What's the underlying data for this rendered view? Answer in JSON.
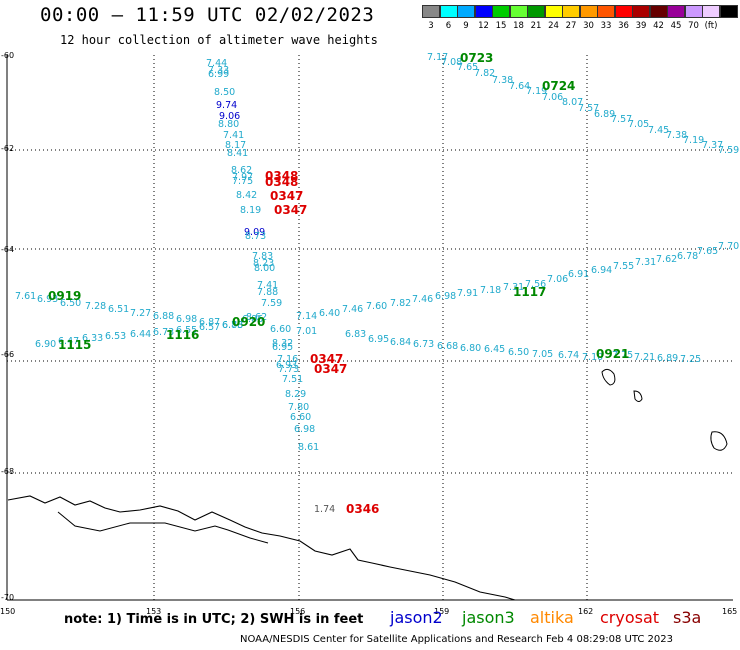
{
  "title": "00:00 — 11:59 UTC 02/02/2023",
  "subtitle": "12 hour collection of altimeter wave heights",
  "legend": {
    "colors": [
      "#888888",
      "#00ffff",
      "#00aaff",
      "#0000ff",
      "#00cc00",
      "#66ff33",
      "#009900",
      "#ffff00",
      "#ffcc00",
      "#ff9900",
      "#ff5500",
      "#ff0000",
      "#aa0000",
      "#660000",
      "#990099",
      "#cc99ff",
      "#eeccff",
      "#000000"
    ],
    "labels": [
      "3",
      "6",
      "9",
      "12",
      "15",
      "18",
      "21",
      "24",
      "27",
      "30",
      "33",
      "36",
      "39",
      "42",
      "45",
      "70",
      "(ft)"
    ]
  },
  "axes": {
    "lat_labels": [
      "-60",
      "-62",
      "-64",
      "-66",
      "-68",
      "-70"
    ],
    "lon_labels": [
      "150",
      "153",
      "156",
      "159",
      "162",
      "165"
    ]
  },
  "satellite_colors": {
    "jason2": "#0000cc",
    "jason3": "#008800",
    "altika": "#ff8800",
    "cryosat": "#dd0000",
    "s3a": "#880000",
    "wave": "#22aacc"
  },
  "pass_times": [
    {
      "label": "0723",
      "sat": "jason3"
    },
    {
      "label": "0724",
      "sat": "jason3"
    },
    {
      "label": "0348",
      "sat": "cryosat"
    },
    {
      "label": "0348",
      "sat": "cryosat"
    },
    {
      "label": "0347",
      "sat": "cryosat"
    },
    {
      "label": "0347",
      "sat": "cryosat"
    },
    {
      "label": "0919",
      "sat": "jason3"
    },
    {
      "label": "0920",
      "sat": "jason3"
    },
    {
      "label": "1117",
      "sat": "jason3"
    },
    {
      "label": "1115",
      "sat": "jason3"
    },
    {
      "label": "1116",
      "sat": "jason3"
    },
    {
      "label": "0921",
      "sat": "jason3"
    },
    {
      "label": "0347",
      "sat": "cryosat"
    },
    {
      "label": "0347",
      "sat": "cryosat"
    },
    {
      "label": "0346",
      "sat": "cryosat"
    }
  ],
  "wave_heights": [
    "7.44",
    "7.33",
    "6.99",
    "8.50",
    "9.74",
    "9.06",
    "8.80",
    "7.41",
    "8.17",
    "8.41",
    "8.62",
    "7.97",
    "7.75",
    "8.42",
    "8.19",
    "9.09",
    "8.73",
    "7.83",
    "8.23",
    "8.00",
    "7.41",
    "7.88",
    "7.59",
    "8.62",
    "6.60",
    "7.14",
    "7.01",
    "8.32",
    "6.95",
    "7.16",
    "6.93",
    "7.73",
    "7.51",
    "8.29",
    "7.80",
    "6.60",
    "6.98",
    "8.61",
    "1.74",
    "7.17",
    "7.08",
    "7.65",
    "7.82",
    "7.38",
    "7.64",
    "7.19",
    "7.06",
    "8.07",
    "7.57",
    "6.89",
    "7.57",
    "7.05",
    "7.45",
    "7.38",
    "7.19",
    "7.37",
    "7.59",
    "7.61",
    "6.93",
    "6.50",
    "7.28",
    "6.51",
    "7.27",
    "6.88",
    "6.98",
    "6.87",
    "6.73",
    "6.86",
    "6.40",
    "7.46",
    "7.60",
    "7.82",
    "7.46",
    "6.98",
    "7.91",
    "7.18",
    "7.31",
    "7.56",
    "7.06",
    "6.91",
    "6.94",
    "7.55",
    "7.31",
    "7.62",
    "6.78",
    "7.65",
    "7.70",
    "6.90",
    "6.47",
    "6.33",
    "6.53",
    "6.44",
    "6.73",
    "6.55",
    "6.57",
    "6.88",
    "6.83",
    "6.95",
    "6.84",
    "6.73",
    "6.68",
    "6.80",
    "6.45",
    "6.50",
    "7.05",
    "6.74",
    "7.10",
    "7.75",
    "7.21",
    "6.89",
    "7.25"
  ],
  "note": "note: 1) Time is in UTC; 2) SWH is in feet",
  "satellites": [
    "jason2",
    "jason3",
    "altika",
    "cryosat",
    "s3a"
  ],
  "credit": "NOAA/NESDIS Center for Satellite Applications and Research   Feb  4 08:29:08 UTC 2023"
}
